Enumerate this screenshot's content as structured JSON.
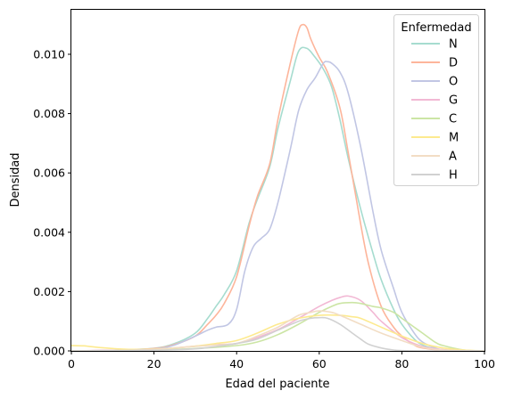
{
  "chart_data": {
    "type": "line",
    "title": "",
    "xlabel": "Edad del paciente",
    "ylabel": "Densidad",
    "xlim": [
      0,
      100
    ],
    "ylim": [
      0,
      0.0115
    ],
    "xticks": [
      0,
      20,
      40,
      60,
      80,
      100
    ],
    "yticks": [
      0.0,
      0.002,
      0.004,
      0.006,
      0.008,
      0.01
    ],
    "ytick_labels": [
      "0.000",
      "0.002",
      "0.004",
      "0.006",
      "0.008",
      "0.010"
    ],
    "grid": false,
    "legend": {
      "title": "Enfermedad",
      "placement": "top-right"
    },
    "series": [
      {
        "name": "N",
        "color": "#a6dccf",
        "x": [
          0,
          10,
          20,
          25,
          30,
          33,
          35,
          37,
          40,
          43,
          45,
          48,
          50,
          53,
          55,
          57,
          59,
          61,
          63,
          65,
          67,
          70,
          73,
          75,
          78,
          80,
          83,
          85,
          88,
          90,
          95,
          100
        ],
        "y": [
          0,
          2e-05,
          9e-05,
          0.00025,
          0.0006,
          0.0011,
          0.0015,
          0.0019,
          0.0027,
          0.0043,
          0.0051,
          0.0062,
          0.0075,
          0.0091,
          0.0101,
          0.0102,
          0.0099,
          0.0095,
          0.0089,
          0.0078,
          0.0065,
          0.0048,
          0.0033,
          0.0024,
          0.0014,
          0.0009,
          0.0004,
          0.0002,
          6e-05,
          2e-05,
          0,
          0
        ]
      },
      {
        "name": "D",
        "color": "#fdb59b",
        "x": [
          0,
          10,
          20,
          25,
          30,
          33,
          35,
          37,
          40,
          43,
          45,
          48,
          50,
          53,
          55,
          56,
          57,
          58,
          60,
          62,
          65,
          67,
          70,
          72,
          75,
          78,
          80,
          83,
          85,
          90,
          100
        ],
        "y": [
          0,
          2e-05,
          8e-05,
          0.00022,
          0.0005,
          0.0009,
          0.0012,
          0.0016,
          0.0025,
          0.0042,
          0.0052,
          0.0063,
          0.0078,
          0.0097,
          0.0108,
          0.011,
          0.0109,
          0.0105,
          0.0099,
          0.0094,
          0.0082,
          0.0067,
          0.0043,
          0.0029,
          0.0015,
          0.0008,
          0.0005,
          0.0002,
          0.0001,
          2e-05,
          0
        ]
      },
      {
        "name": "O",
        "color": "#c1c6e4",
        "x": [
          0,
          10,
          20,
          25,
          30,
          33,
          35,
          38,
          40,
          42,
          44,
          46,
          48,
          50,
          53,
          55,
          57,
          59,
          61,
          62,
          63,
          65,
          67,
          70,
          73,
          75,
          78,
          80,
          83,
          85,
          88,
          90,
          95,
          100
        ],
        "y": [
          0,
          2e-05,
          6e-05,
          0.0002,
          0.0005,
          0.0007,
          0.0008,
          0.0009,
          0.0014,
          0.0027,
          0.0035,
          0.0038,
          0.0041,
          0.005,
          0.0068,
          0.0081,
          0.0088,
          0.0092,
          0.0097,
          0.00975,
          0.0097,
          0.0094,
          0.0087,
          0.0069,
          0.0047,
          0.0034,
          0.0021,
          0.0013,
          0.0006,
          0.0003,
          0.0001,
          4e-05,
          0,
          0
        ]
      },
      {
        "name": "G",
        "color": "#f2b8d4",
        "x": [
          0,
          10,
          20,
          25,
          30,
          35,
          40,
          45,
          50,
          55,
          60,
          63,
          65,
          67,
          70,
          73,
          75,
          80,
          85,
          90,
          95,
          100
        ],
        "y": [
          0,
          2e-05,
          4e-05,
          0.0001,
          0.00016,
          0.00021,
          0.00025,
          0.00045,
          0.00072,
          0.0011,
          0.0015,
          0.0017,
          0.0018,
          0.00185,
          0.0017,
          0.0013,
          0.001,
          0.00045,
          0.00015,
          4e-05,
          1e-05,
          0
        ]
      },
      {
        "name": "C",
        "color": "#cce5a5",
        "x": [
          0,
          10,
          20,
          30,
          40,
          45,
          50,
          55,
          60,
          63,
          65,
          68,
          70,
          73,
          75,
          78,
          80,
          83,
          85,
          88,
          90,
          95,
          100
        ],
        "y": [
          0,
          1e-05,
          3e-05,
          8e-05,
          0.00018,
          0.0003,
          0.00055,
          0.0009,
          0.0013,
          0.0015,
          0.0016,
          0.00163,
          0.0016,
          0.0015,
          0.00145,
          0.0013,
          0.0011,
          0.0008,
          0.0006,
          0.0003,
          0.00018,
          3e-05,
          0
        ]
      },
      {
        "name": "M",
        "color": "#fdea8f",
        "x": [
          0,
          3,
          5,
          10,
          15,
          20,
          25,
          30,
          35,
          40,
          45,
          50,
          55,
          60,
          65,
          68,
          70,
          75,
          80,
          85,
          90,
          95,
          100
        ],
        "y": [
          0.00018,
          0.00017,
          0.00014,
          8e-05,
          5e-05,
          6e-05,
          0.0001,
          0.00016,
          0.00025,
          0.00035,
          0.0006,
          0.0009,
          0.0011,
          0.0012,
          0.0012,
          0.00115,
          0.0011,
          0.0008,
          0.0005,
          0.00025,
          0.0001,
          3e-05,
          0
        ]
      },
      {
        "name": "A",
        "color": "#f2ddc4",
        "x": [
          0,
          10,
          20,
          25,
          30,
          35,
          40,
          45,
          50,
          55,
          58,
          60,
          63,
          65,
          70,
          75,
          80,
          85,
          90,
          100
        ],
        "y": [
          0,
          1e-05,
          5e-05,
          0.0001,
          0.00015,
          0.0002,
          0.00025,
          0.0005,
          0.0008,
          0.0012,
          0.0013,
          0.00135,
          0.0013,
          0.0012,
          0.0009,
          0.0006,
          0.00035,
          0.00012,
          3e-05,
          0
        ]
      },
      {
        "name": "H",
        "color": "#d1d1d1",
        "x": [
          0,
          20,
          30,
          35,
          40,
          45,
          50,
          55,
          58,
          60,
          62,
          65,
          68,
          70,
          72,
          75,
          78,
          80,
          85,
          100
        ],
        "y": [
          0,
          2e-05,
          7e-05,
          0.00015,
          0.00025,
          0.0004,
          0.0007,
          0.001,
          0.0011,
          0.00112,
          0.0011,
          0.0009,
          0.0006,
          0.0004,
          0.00022,
          0.0001,
          3e-05,
          1e-05,
          0,
          0
        ]
      }
    ]
  }
}
